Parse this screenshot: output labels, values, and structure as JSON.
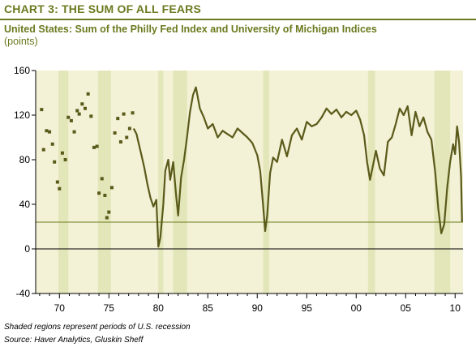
{
  "title": "CHART 3: THE SUM OF ALL FEARS",
  "subtitle": "United States: Sum of the Philly Fed Index and University of Michigan Indices",
  "units": "(points)",
  "footnote": "Shaded regions represent periods of U.S. recession",
  "source": "Source: Haver Analytics, Gluskin Sheff",
  "colors": {
    "accent": "#6b7a1f",
    "line": "#5a5a1a",
    "plot_bg": "#f3f1d6",
    "recession": "#e2e6b8"
  },
  "chart_data": {
    "type": "line",
    "title": "CHART 3: THE SUM OF ALL FEARS",
    "ylabel": "(points)",
    "xlabel": "",
    "xlim": [
      1967.6,
      2010.8
    ],
    "ylim": [
      -40,
      160
    ],
    "y_ticks": [
      -40,
      0,
      40,
      80,
      120,
      160
    ],
    "y_tick_labels": [
      "-40",
      "0",
      "40",
      "80",
      "120",
      "160"
    ],
    "x_ticks": [
      1970,
      1975,
      1980,
      1985,
      1990,
      1995,
      2000,
      2005,
      2010
    ],
    "x_tick_labels": [
      "70",
      "75",
      "80",
      "85",
      "90",
      "95",
      "00",
      "05",
      "10"
    ],
    "reference_lines": [
      0,
      24
    ],
    "grid": false,
    "recessions": [
      [
        1969.9,
        1970.9
      ],
      [
        1973.9,
        1975.2
      ],
      [
        1980.0,
        1980.5
      ],
      [
        1981.5,
        1982.9
      ],
      [
        1990.6,
        1991.2
      ],
      [
        2001.2,
        2001.9
      ],
      [
        2007.9,
        2009.5
      ]
    ],
    "scatter_series": {
      "x": [
        1968.2,
        1968.4,
        1968.7,
        1969.0,
        1969.3,
        1969.5,
        1969.8,
        1970.0,
        1970.3,
        1970.6,
        1970.9,
        1971.2,
        1971.5,
        1971.8,
        1972.0,
        1972.3,
        1972.6,
        1972.9,
        1973.2,
        1973.5,
        1973.8,
        1974.0,
        1974.3,
        1974.6,
        1974.8,
        1975.0,
        1975.3,
        1975.6,
        1975.9,
        1976.2,
        1976.5,
        1976.8,
        1977.1,
        1977.4
      ],
      "values": [
        125,
        89,
        106,
        105,
        94,
        78,
        60,
        54,
        86,
        80,
        118,
        115,
        105,
        124,
        121,
        130,
        126,
        139,
        119,
        91,
        92,
        50,
        63,
        48,
        28,
        33,
        55,
        104,
        117,
        96,
        121,
        100,
        108,
        122
      ]
    },
    "series": [
      {
        "x": [
          1977.5,
          1977.8,
          1978.0,
          1978.3,
          1978.6,
          1978.9,
          1979.2,
          1979.5,
          1979.8,
          1980.0,
          1980.2,
          1980.5,
          1980.7,
          1981.0,
          1981.2,
          1981.5,
          1981.8,
          1982.0,
          1982.3,
          1982.6,
          1982.9,
          1983.2,
          1983.5,
          1983.8,
          1984.2,
          1984.6,
          1985.0,
          1985.5,
          1986.0,
          1986.5,
          1987.0,
          1987.5,
          1988.0,
          1988.5,
          1989.0,
          1989.5,
          1990.0,
          1990.3,
          1990.6,
          1990.8,
          1991.0,
          1991.3,
          1991.6,
          1992.0,
          1992.5,
          1993.0,
          1993.5,
          1994.0,
          1994.5,
          1995.0,
          1995.5,
          1996.0,
          1996.5,
          1997.0,
          1997.5,
          1998.0,
          1998.5,
          1999.0,
          1999.5,
          2000.0,
          2000.4,
          2000.8,
          2001.1,
          2001.4,
          2001.7,
          2002.0,
          2002.4,
          2002.8,
          2003.2,
          2003.6,
          2004.0,
          2004.4,
          2004.8,
          2005.2,
          2005.6,
          2006.0,
          2006.4,
          2006.8,
          2007.2,
          2007.6,
          2008.0,
          2008.3,
          2008.6,
          2008.9,
          2009.2,
          2009.5,
          2009.8,
          2010.0,
          2010.2,
          2010.4,
          2010.6,
          2010.7
        ],
        "values": [
          108,
          103,
          95,
          84,
          72,
          58,
          46,
          38,
          44,
          2,
          10,
          40,
          70,
          80,
          62,
          78,
          48,
          30,
          64,
          80,
          100,
          123,
          138,
          145,
          126,
          118,
          108,
          112,
          100,
          106,
          103,
          100,
          108,
          104,
          100,
          95,
          84,
          70,
          38,
          16,
          30,
          68,
          82,
          78,
          98,
          83,
          102,
          108,
          98,
          114,
          110,
          112,
          118,
          126,
          121,
          125,
          118,
          123,
          120,
          124,
          116,
          102,
          78,
          62,
          75,
          88,
          72,
          66,
          96,
          100,
          112,
          126,
          120,
          128,
          102,
          123,
          110,
          118,
          105,
          98,
          68,
          36,
          14,
          22,
          55,
          78,
          94,
          85,
          110,
          96,
          65,
          24
        ]
      }
    ]
  }
}
